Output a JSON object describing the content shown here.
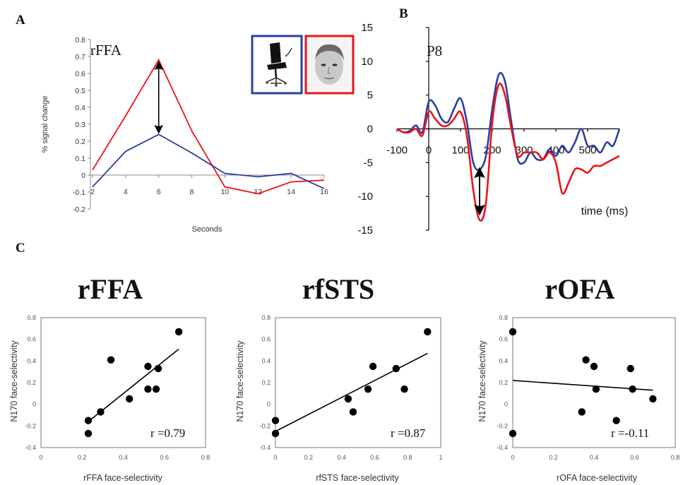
{
  "panels": {
    "a": "A",
    "b": "B",
    "c": "C"
  },
  "chart_data": [
    {
      "type": "line",
      "panel": "A",
      "title": "rFFA",
      "xlabel": "Seconds",
      "ylabel": "% signal change",
      "xlim": [
        2,
        16
      ],
      "ylim": [
        -0.2,
        0.8
      ],
      "xticks": [
        2,
        4,
        6,
        8,
        10,
        12,
        14,
        16
      ],
      "yticks": [
        -0.2,
        -0.1,
        0,
        0.1,
        0.2,
        0.3,
        0.4,
        0.5,
        0.6,
        0.7,
        0.8
      ],
      "stimuli": [
        "chair",
        "face"
      ],
      "series": [
        {
          "color": "#e8141b",
          "x": [
            2,
            4,
            6,
            8,
            10,
            12,
            14,
            16
          ],
          "y": [
            0.03,
            0.35,
            0.68,
            0.26,
            -0.07,
            -0.11,
            -0.04,
            -0.03
          ]
        },
        {
          "color": "#2b3fa0",
          "x": [
            2,
            4,
            6,
            8,
            10,
            12,
            14,
            16
          ],
          "y": [
            -0.07,
            0.14,
            0.24,
            0.13,
            0.01,
            -0.01,
            0.01,
            -0.08
          ]
        }
      ],
      "arrow": {
        "x": 6,
        "y_from": 0.68,
        "y_to": 0.24
      }
    },
    {
      "type": "line",
      "panel": "B",
      "title": "P8",
      "xlabel": "time (ms)",
      "ylabel": "",
      "xlim": [
        -100,
        600
      ],
      "ylim": [
        -15,
        15
      ],
      "xticks": [
        -100,
        0,
        100,
        200,
        300,
        400,
        500
      ],
      "yticks": [
        15,
        10,
        5,
        0,
        -5,
        -10,
        -15
      ],
      "series": [
        {
          "color": "#2b3fa0",
          "x": [
            -100,
            -80,
            -60,
            -40,
            -20,
            0,
            20,
            40,
            60,
            80,
            100,
            120,
            140,
            160,
            180,
            200,
            220,
            240,
            260,
            280,
            300,
            320,
            340,
            360,
            380,
            400,
            420,
            440,
            460,
            480,
            500,
            520,
            540,
            560,
            580,
            600
          ],
          "y": [
            0.0,
            -0.5,
            -0.3,
            0.5,
            -0.5,
            4.0,
            3.5,
            1.5,
            1.0,
            3.0,
            4.5,
            1.0,
            -5.0,
            -6.0,
            -4.0,
            3.0,
            8.0,
            7.0,
            1.0,
            -4.5,
            -5.0,
            -3.5,
            -4.5,
            -4.5,
            -3.0,
            -4.0,
            -2.5,
            -3.5,
            -2.0,
            0.0,
            -2.5,
            -2.5,
            -3.5,
            -2.0,
            -2.5,
            0.0
          ]
        },
        {
          "color": "#e8141b",
          "x": [
            -100,
            -80,
            -60,
            -40,
            -20,
            0,
            20,
            40,
            60,
            80,
            100,
            120,
            140,
            160,
            180,
            200,
            220,
            240,
            260,
            280,
            300,
            320,
            340,
            360,
            380,
            400,
            420,
            440,
            460,
            480,
            500,
            520,
            540,
            560,
            580,
            600
          ],
          "y": [
            0.0,
            -0.5,
            -0.5,
            0.0,
            -1.0,
            2.5,
            1.5,
            0.5,
            0.5,
            1.5,
            2.5,
            -1.0,
            -9.0,
            -13.5,
            -11.0,
            1.0,
            6.5,
            5.0,
            0.0,
            -4.0,
            -3.5,
            -3.5,
            -3.5,
            -4.5,
            -3.5,
            -5.0,
            -9.5,
            -8.0,
            -6.0,
            -6.0,
            -6.5,
            -5.5,
            -5.5,
            -5.0,
            -4.5,
            -4.0
          ]
        }
      ],
      "arrow": {
        "x": 160,
        "y_from": -5.5,
        "y_to": -13
      }
    },
    {
      "type": "scatter",
      "panel": "C",
      "title": "rFFA",
      "xlabel": "rFFA face-selectivity",
      "ylabel": "N170 face-selectivity",
      "xlim": [
        0,
        0.8
      ],
      "ylim": [
        -0.4,
        0.8
      ],
      "xticks": [
        0,
        0.2,
        0.4,
        0.6,
        0.8
      ],
      "yticks": [
        -0.4,
        -0.2,
        0,
        0.2,
        0.4,
        0.6,
        0.8
      ],
      "points": [
        [
          0.23,
          -0.27
        ],
        [
          0.23,
          -0.15
        ],
        [
          0.29,
          -0.07
        ],
        [
          0.34,
          0.41
        ],
        [
          0.43,
          0.05
        ],
        [
          0.52,
          0.35
        ],
        [
          0.52,
          0.14
        ],
        [
          0.56,
          0.14
        ],
        [
          0.57,
          0.33
        ],
        [
          0.67,
          0.67
        ]
      ],
      "fit": [
        [
          0.23,
          -0.16
        ],
        [
          0.67,
          0.51
        ]
      ],
      "annotation": "r =0.79"
    },
    {
      "type": "scatter",
      "panel": "C",
      "title": "rfSTS",
      "xlabel": "rfSTS face-selectivity",
      "ylabel": "N170 face-selectivity",
      "xlim": [
        0,
        1
      ],
      "ylim": [
        -0.4,
        0.8
      ],
      "xticks": [
        0,
        0.2,
        0.4,
        0.6,
        0.8,
        1
      ],
      "yticks": [
        -0.4,
        -0.2,
        0,
        0.2,
        0.4,
        0.6,
        0.8
      ],
      "points": [
        [
          0.0,
          -0.27
        ],
        [
          0.0,
          -0.15
        ],
        [
          0.44,
          0.05
        ],
        [
          0.47,
          -0.07
        ],
        [
          0.56,
          0.14
        ],
        [
          0.59,
          0.35
        ],
        [
          0.73,
          0.33
        ],
        [
          0.78,
          0.14
        ],
        [
          0.92,
          0.67
        ]
      ],
      "fit": [
        [
          0.0,
          -0.25
        ],
        [
          0.92,
          0.47
        ]
      ],
      "annotation": "r =0.87"
    },
    {
      "type": "scatter",
      "panel": "C",
      "title": "rOFA",
      "xlabel": "rOFA face-selectivity",
      "ylabel": "N170 face-selectivity",
      "xlim": [
        0,
        0.8
      ],
      "ylim": [
        -0.4,
        0.8
      ],
      "xticks": [
        0,
        0.2,
        0.4,
        0.6,
        0.8
      ],
      "yticks": [
        -0.4,
        -0.2,
        0,
        0.2,
        0.4,
        0.6,
        0.8
      ],
      "points": [
        [
          0.0,
          0.67
        ],
        [
          0.0,
          -0.27
        ],
        [
          0.34,
          -0.07
        ],
        [
          0.36,
          0.41
        ],
        [
          0.4,
          0.35
        ],
        [
          0.41,
          0.14
        ],
        [
          0.51,
          -0.15
        ],
        [
          0.58,
          0.33
        ],
        [
          0.59,
          0.14
        ],
        [
          0.69,
          0.05
        ]
      ],
      "fit": [
        [
          0.0,
          0.22
        ],
        [
          0.69,
          0.13
        ]
      ],
      "annotation": "r =-0.11"
    }
  ]
}
